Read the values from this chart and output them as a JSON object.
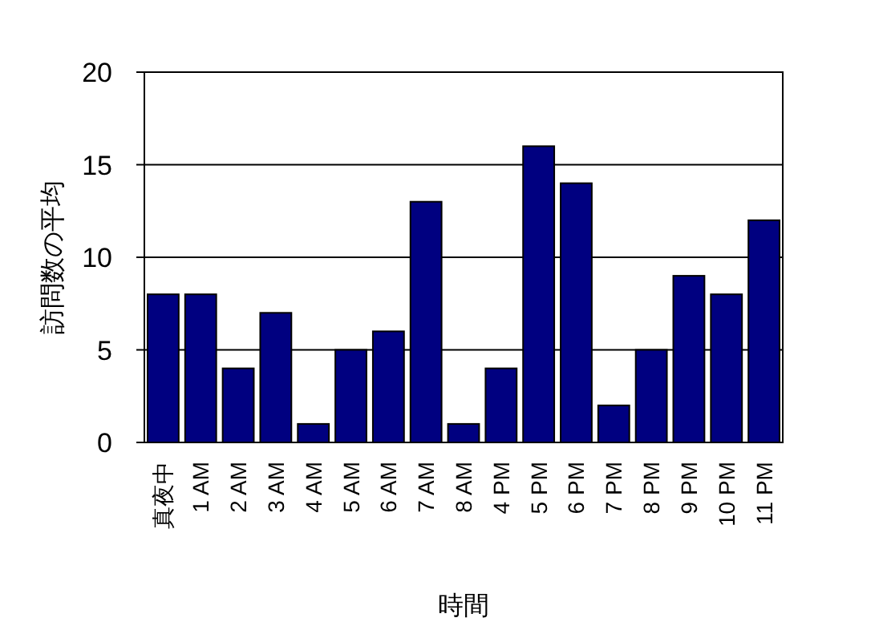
{
  "chart_data": {
    "type": "bar",
    "xlabel": "時間",
    "ylabel": "訪問数の平均",
    "categories": [
      "真夜中",
      "1 AM",
      "2 AM",
      "3 AM",
      "4 AM",
      "5 AM",
      "6 AM",
      "7 AM",
      "8 AM",
      "4 PM",
      "5 PM",
      "6 PM",
      "7 PM",
      "8 PM",
      "9 PM",
      "10 PM",
      "11 PM"
    ],
    "values": [
      8,
      8,
      4,
      7,
      1,
      5,
      6,
      13,
      1,
      4,
      16,
      14,
      2,
      5,
      9,
      8,
      12
    ],
    "color": "#000080",
    "ylim": [
      0,
      20
    ],
    "yticks": [
      0,
      5,
      10,
      15,
      20
    ],
    "grid": "y"
  }
}
